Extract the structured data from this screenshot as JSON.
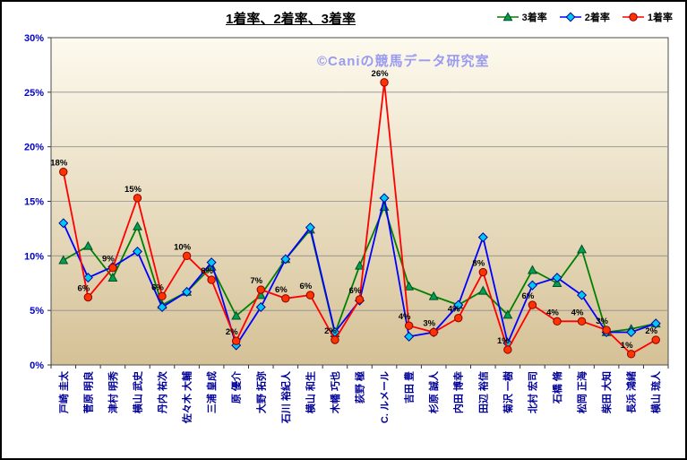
{
  "chart_data": {
    "type": "line",
    "title": "1着率、2着率、3着率",
    "watermark": "©Caniの競馬データ研究室",
    "ylim": [
      0,
      30
    ],
    "ytick_step": 5,
    "y_tick_labels": [
      "0%",
      "5%",
      "10%",
      "15%",
      "20%",
      "25%",
      "30%"
    ],
    "legend": [
      "3着率",
      "2着率",
      "1着率"
    ],
    "legend_position": "top-right",
    "grid": true,
    "colors": {
      "y_label": "#0000cc",
      "x_label": "#000099",
      "data_label": "#000000",
      "plot_bg_top": "#fdfaee",
      "plot_bg_bottom": "#d5c196",
      "gridline": "#8f8f8f",
      "watermark": "#9a9af0"
    },
    "categories": [
      "戸崎 圭太",
      "菅原 明良",
      "津村 明秀",
      "横山 武史",
      "丹内 祐次",
      "佐々木 大輔",
      "三浦 皇成",
      "原 優介",
      "大野 拓弥",
      "石川 裕紀人",
      "横山 和生",
      "木幡 巧也",
      "荻野 極",
      "C. ルメール",
      "吉田 豊",
      "杉原 誠人",
      "内田 博幸",
      "田辺 裕信",
      "菊沢 一樹",
      "北村 宏司",
      "石橋 脩",
      "松岡 正海",
      "柴田 大知",
      "長浜 鴻緒",
      "横山 琉人"
    ],
    "series": [
      {
        "name": "3着率",
        "marker": "triangle",
        "line_color": "#008000",
        "marker_fill": "#00a050",
        "marker_edge": "#004d26",
        "values": [
          9.6,
          10.9,
          8.0,
          12.7,
          5.5,
          6.7,
          9.0,
          4.5,
          6.4,
          9.7,
          12.4,
          2.9,
          9.1,
          14.5,
          7.2,
          6.3,
          5.5,
          6.8,
          4.6,
          8.7,
          7.5,
          10.6,
          3.0,
          3.3,
          3.8
        ]
      },
      {
        "name": "2着率",
        "marker": "diamond",
        "line_color": "#0000ff",
        "marker_fill": "#00c8f0",
        "marker_edge": "#0000a0",
        "values": [
          13.0,
          8.0,
          9.0,
          10.4,
          5.3,
          6.7,
          9.4,
          1.8,
          5.3,
          9.7,
          12.6,
          3.0,
          5.9,
          15.3,
          2.6,
          3.0,
          5.5,
          11.7,
          2.0,
          7.3,
          8.0,
          6.4,
          3.0,
          3.0,
          3.8
        ]
      },
      {
        "name": "1着率",
        "marker": "circle",
        "line_color": "#ff0000",
        "marker_fill": "#ff3300",
        "marker_edge": "#8b0000",
        "values": [
          17.7,
          6.2,
          8.9,
          15.3,
          6.3,
          10.0,
          7.8,
          2.2,
          6.9,
          6.1,
          6.4,
          2.3,
          6.0,
          25.9,
          3.6,
          3.0,
          4.3,
          8.5,
          1.4,
          5.5,
          4.0,
          4.0,
          3.2,
          1.0,
          2.3
        ],
        "labels": [
          "18%",
          "6%",
          "9%",
          "15%",
          "6%",
          "10%",
          "8%",
          "2%",
          "7%",
          "6%",
          "6%",
          "2%",
          "6%",
          "26%",
          "4%",
          "3%",
          "4%",
          "8%",
          "1%",
          "6%",
          "4%",
          "4%",
          "3%",
          "1%",
          "2%"
        ]
      }
    ]
  }
}
